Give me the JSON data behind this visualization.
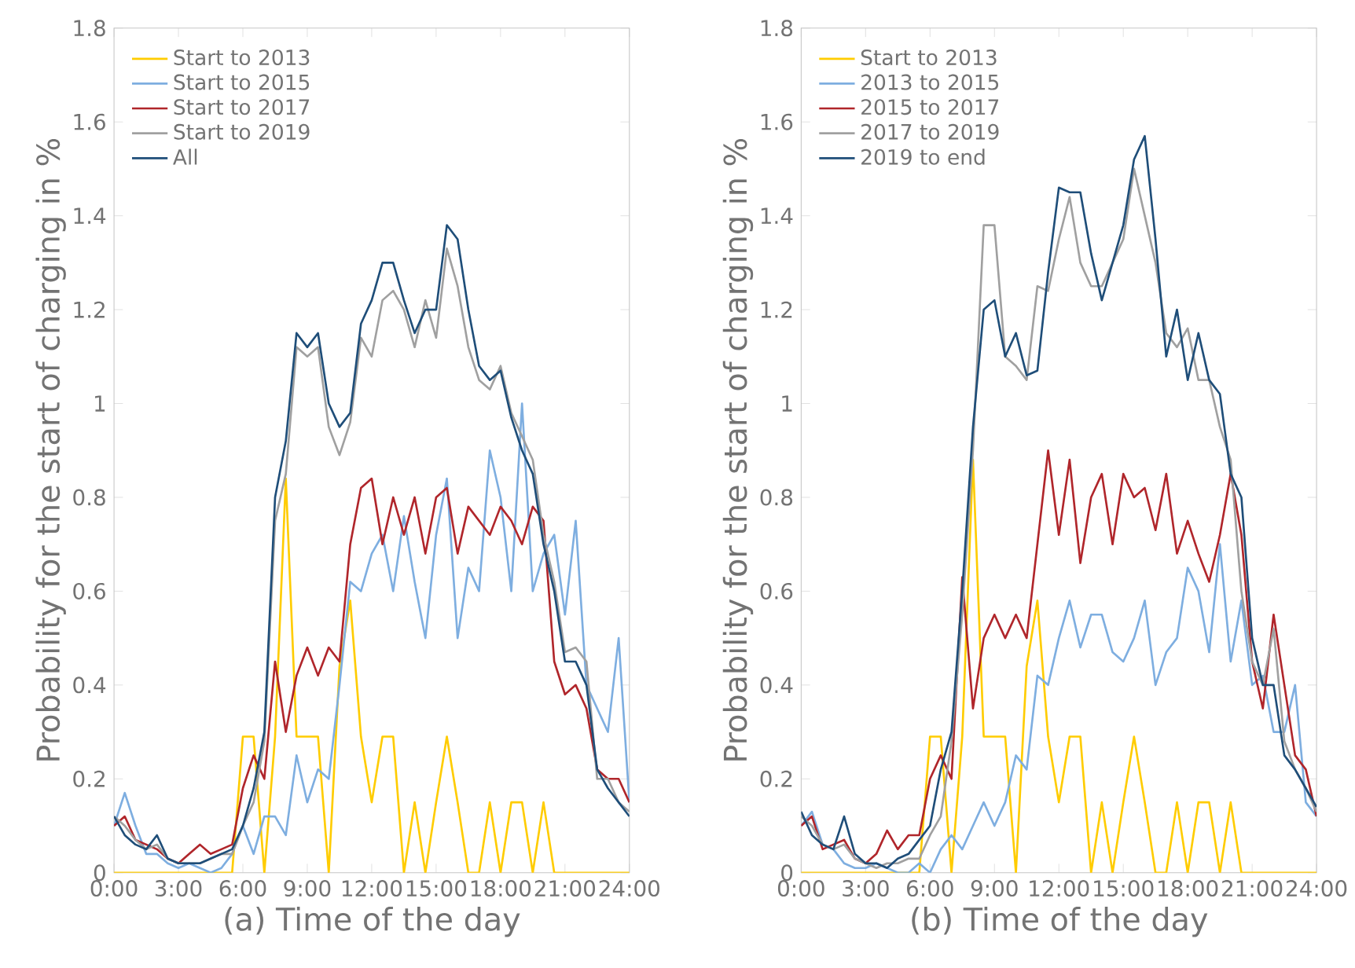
{
  "chart_data": [
    {
      "type": "line",
      "xlabel": "(a) Time of the day",
      "ylabel": "Probability for the start of charging in %",
      "legend": "top left",
      "x": [
        0,
        0.5,
        1,
        1.5,
        2,
        2.5,
        3,
        3.5,
        4,
        4.5,
        5,
        5.5,
        6,
        6.5,
        7,
        7.5,
        8,
        8.5,
        9,
        9.5,
        10,
        10.5,
        11,
        11.5,
        12,
        12.5,
        13,
        13.5,
        14,
        14.5,
        15,
        15.5,
        16,
        16.5,
        17,
        17.5,
        18,
        18.5,
        19,
        19.5,
        20,
        20.5,
        21,
        21.5,
        22,
        22.5,
        23,
        23.5,
        24
      ],
      "xlim": [
        0,
        24
      ],
      "ylim": [
        0,
        1.8
      ],
      "xticks": [
        {
          "value": 0,
          "label": "0:00"
        },
        {
          "value": 3,
          "label": "3:00"
        },
        {
          "value": 6,
          "label": "6:00"
        },
        {
          "value": 9,
          "label": "9:00"
        },
        {
          "value": 12,
          "label": "12:00"
        },
        {
          "value": 15,
          "label": "15:00"
        },
        {
          "value": 18,
          "label": "18:00"
        },
        {
          "value": 21,
          "label": "21:00"
        },
        {
          "value": 24,
          "label": "24:00"
        }
      ],
      "yticks": [
        0,
        0.2,
        0.4,
        0.6,
        0.8,
        1,
        1.2,
        1.4,
        1.6,
        1.8
      ],
      "series": [
        {
          "name": "Start to 2013",
          "color": "#ffcc00",
          "values": [
            0,
            0,
            0,
            0,
            0,
            0,
            0,
            0,
            0,
            0,
            0,
            0,
            0.29,
            0.29,
            0,
            0.29,
            0.84,
            0.29,
            0.29,
            0.29,
            0,
            0.44,
            0.58,
            0.29,
            0.15,
            0.29,
            0.29,
            0,
            0.15,
            0,
            0.15,
            0.29,
            0.15,
            0,
            0,
            0.15,
            0,
            0.15,
            0.15,
            0,
            0.15,
            0,
            0,
            0,
            0,
            0,
            0,
            0,
            0
          ]
        },
        {
          "name": "Start to 2015",
          "color": "#7eaee0",
          "values": [
            0.1,
            0.17,
            0.1,
            0.04,
            0.04,
            0.02,
            0.01,
            0.02,
            0.01,
            0,
            0.01,
            0.04,
            0.1,
            0.04,
            0.12,
            0.12,
            0.08,
            0.25,
            0.15,
            0.22,
            0.2,
            0.4,
            0.62,
            0.6,
            0.68,
            0.72,
            0.6,
            0.76,
            0.62,
            0.5,
            0.72,
            0.84,
            0.5,
            0.65,
            0.6,
            0.9,
            0.8,
            0.6,
            1.0,
            0.6,
            0.68,
            0.72,
            0.55,
            0.75,
            0.4,
            0.35,
            0.3,
            0.5,
            0.15
          ]
        },
        {
          "name": "Start to 2017",
          "color": "#b0262b",
          "values": [
            0.1,
            0.12,
            0.07,
            0.06,
            0.05,
            0.03,
            0.02,
            0.04,
            0.06,
            0.04,
            0.05,
            0.06,
            0.18,
            0.25,
            0.2,
            0.45,
            0.3,
            0.42,
            0.48,
            0.42,
            0.48,
            0.45,
            0.7,
            0.82,
            0.84,
            0.7,
            0.8,
            0.72,
            0.8,
            0.68,
            0.8,
            0.82,
            0.68,
            0.78,
            0.75,
            0.72,
            0.78,
            0.75,
            0.7,
            0.78,
            0.75,
            0.45,
            0.38,
            0.4,
            0.35,
            0.22,
            0.2,
            0.2,
            0.15
          ]
        },
        {
          "name": "Start to 2019",
          "color": "#a0a0a0",
          "values": [
            0.12,
            0.1,
            0.07,
            0.05,
            0.06,
            0.03,
            0.02,
            0.02,
            0.02,
            0.03,
            0.04,
            0.04,
            0.1,
            0.15,
            0.28,
            0.75,
            0.85,
            1.12,
            1.1,
            1.12,
            0.95,
            0.89,
            0.96,
            1.14,
            1.1,
            1.22,
            1.24,
            1.2,
            1.12,
            1.22,
            1.14,
            1.33,
            1.25,
            1.12,
            1.05,
            1.03,
            1.08,
            0.98,
            0.93,
            0.88,
            0.72,
            0.62,
            0.47,
            0.48,
            0.45,
            0.2,
            0.2,
            0.15,
            0.13
          ]
        },
        {
          "name": "All",
          "color": "#1f4e79",
          "values": [
            0.12,
            0.08,
            0.06,
            0.05,
            0.08,
            0.03,
            0.02,
            0.02,
            0.02,
            0.03,
            0.04,
            0.05,
            0.1,
            0.18,
            0.3,
            0.8,
            0.92,
            1.15,
            1.12,
            1.15,
            1.0,
            0.95,
            0.98,
            1.17,
            1.22,
            1.3,
            1.3,
            1.22,
            1.15,
            1.2,
            1.2,
            1.38,
            1.35,
            1.2,
            1.08,
            1.05,
            1.07,
            0.97,
            0.9,
            0.85,
            0.7,
            0.6,
            0.45,
            0.45,
            0.4,
            0.22,
            0.18,
            0.15,
            0.12
          ]
        }
      ]
    },
    {
      "type": "line",
      "xlabel": "(b) Time of the day",
      "ylabel": "Probability for the start of charging in %",
      "legend": "top left",
      "x": [
        0,
        0.5,
        1,
        1.5,
        2,
        2.5,
        3,
        3.5,
        4,
        4.5,
        5,
        5.5,
        6,
        6.5,
        7,
        7.5,
        8,
        8.5,
        9,
        9.5,
        10,
        10.5,
        11,
        11.5,
        12,
        12.5,
        13,
        13.5,
        14,
        14.5,
        15,
        15.5,
        16,
        16.5,
        17,
        17.5,
        18,
        18.5,
        19,
        19.5,
        20,
        20.5,
        21,
        21.5,
        22,
        22.5,
        23,
        23.5,
        24
      ],
      "xlim": [
        0,
        24
      ],
      "ylim": [
        0,
        1.8
      ],
      "xticks": [
        {
          "value": 0,
          "label": "0:00"
        },
        {
          "value": 3,
          "label": "3:00"
        },
        {
          "value": 6,
          "label": "6:00"
        },
        {
          "value": 9,
          "label": "9:00"
        },
        {
          "value": 12,
          "label": "12:00"
        },
        {
          "value": 15,
          "label": "15:00"
        },
        {
          "value": 18,
          "label": "18:00"
        },
        {
          "value": 21,
          "label": "21:00"
        },
        {
          "value": 24,
          "label": "24:00"
        }
      ],
      "yticks": [
        0,
        0.2,
        0.4,
        0.6,
        0.8,
        1,
        1.2,
        1.4,
        1.6,
        1.8
      ],
      "series": [
        {
          "name": "Start to 2013",
          "color": "#ffcc00",
          "values": [
            0,
            0,
            0,
            0,
            0,
            0,
            0,
            0,
            0,
            0,
            0,
            0,
            0.29,
            0.29,
            0,
            0.29,
            0.88,
            0.29,
            0.29,
            0.29,
            0,
            0.44,
            0.58,
            0.29,
            0.15,
            0.29,
            0.29,
            0,
            0.15,
            0,
            0.15,
            0.29,
            0.15,
            0,
            0,
            0.15,
            0,
            0.15,
            0.15,
            0,
            0.15,
            0,
            0,
            0,
            0,
            0,
            0,
            0,
            0
          ]
        },
        {
          "name": "2013 to 2015",
          "color": "#7eaee0",
          "values": [
            0.1,
            0.13,
            0.06,
            0.05,
            0.02,
            0.01,
            0.01,
            0.02,
            0.01,
            0,
            0,
            0.02,
            0,
            0.05,
            0.08,
            0.05,
            0.1,
            0.15,
            0.1,
            0.15,
            0.25,
            0.22,
            0.42,
            0.4,
            0.5,
            0.58,
            0.48,
            0.55,
            0.55,
            0.47,
            0.45,
            0.5,
            0.58,
            0.4,
            0.47,
            0.5,
            0.65,
            0.6,
            0.47,
            0.7,
            0.45,
            0.58,
            0.4,
            0.42,
            0.3,
            0.3,
            0.4,
            0.15,
            0.12
          ]
        },
        {
          "name": "2015 to 2017",
          "color": "#b0262b",
          "values": [
            0.1,
            0.12,
            0.05,
            0.06,
            0.07,
            0.03,
            0.02,
            0.04,
            0.09,
            0.05,
            0.08,
            0.08,
            0.2,
            0.25,
            0.2,
            0.63,
            0.35,
            0.5,
            0.55,
            0.5,
            0.55,
            0.5,
            0.7,
            0.9,
            0.72,
            0.88,
            0.66,
            0.8,
            0.85,
            0.7,
            0.85,
            0.8,
            0.82,
            0.73,
            0.85,
            0.68,
            0.75,
            0.68,
            0.62,
            0.72,
            0.85,
            0.72,
            0.45,
            0.35,
            0.55,
            0.4,
            0.25,
            0.22,
            0.12
          ]
        },
        {
          "name": "2017 to 2019",
          "color": "#a0a0a0",
          "values": [
            0.12,
            0.1,
            0.06,
            0.05,
            0.06,
            0.03,
            0.02,
            0.01,
            0.02,
            0.02,
            0.03,
            0.03,
            0.08,
            0.12,
            0.28,
            0.55,
            0.9,
            1.38,
            1.38,
            1.1,
            1.08,
            1.05,
            1.25,
            1.24,
            1.35,
            1.44,
            1.3,
            1.25,
            1.25,
            1.3,
            1.35,
            1.5,
            1.4,
            1.3,
            1.15,
            1.12,
            1.16,
            1.05,
            1.05,
            0.95,
            0.88,
            0.6,
            0.45,
            0.4,
            0.52,
            0.28,
            0.22,
            0.18,
            0.13
          ]
        },
        {
          "name": "2019 to end",
          "color": "#1f4e79",
          "values": [
            0.13,
            0.08,
            0.06,
            0.05,
            0.12,
            0.04,
            0.02,
            0.02,
            0.01,
            0.03,
            0.04,
            0.07,
            0.1,
            0.22,
            0.3,
            0.6,
            0.95,
            1.2,
            1.22,
            1.1,
            1.15,
            1.06,
            1.07,
            1.28,
            1.46,
            1.45,
            1.45,
            1.32,
            1.22,
            1.3,
            1.38,
            1.52,
            1.57,
            1.35,
            1.1,
            1.2,
            1.05,
            1.15,
            1.05,
            1.02,
            0.85,
            0.8,
            0.5,
            0.4,
            0.4,
            0.25,
            0.22,
            0.18,
            0.14
          ]
        }
      ]
    }
  ]
}
